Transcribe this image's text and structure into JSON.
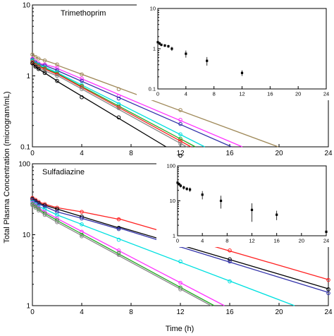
{
  "figure": {
    "ylabel": "Total Plasma Concentration (microgram/mL)",
    "xlabel": "Time (h)"
  },
  "chart_data": [
    {
      "id": "trimethoprim",
      "type": "line",
      "title": "Trimethoprim",
      "yscale": "log",
      "xlim": [
        0,
        24
      ],
      "ylim": [
        0.1,
        10
      ],
      "xticks": [
        "0",
        "4",
        "8",
        "12",
        "16",
        "20",
        "24"
      ],
      "yticks": [
        "0.1",
        "1",
        "10"
      ],
      "grid": false,
      "series": [
        {
          "color": "#a08a5a",
          "x": [
            0,
            0.25,
            0.5,
            1,
            2,
            4,
            7,
            12
          ],
          "y": [
            2.0,
            1.85,
            1.75,
            1.65,
            1.45,
            1.05,
            0.65,
            0.33
          ]
        },
        {
          "color": "#ff33ff",
          "x": [
            0,
            0.25,
            0.5,
            1,
            2,
            4,
            7,
            12
          ],
          "y": [
            1.75,
            1.6,
            1.5,
            1.45,
            1.3,
            0.92,
            0.52,
            0.24
          ]
        },
        {
          "color": "#3333aa",
          "x": [
            0,
            0.25,
            0.5,
            1,
            2,
            4,
            7,
            12
          ],
          "y": [
            1.7,
            1.55,
            1.45,
            1.4,
            1.2,
            0.85,
            0.48,
            0.21
          ]
        },
        {
          "color": "#00e0e0",
          "x": [
            0,
            0.25,
            0.5,
            1,
            2,
            4,
            7,
            12
          ],
          "y": [
            1.65,
            1.5,
            1.42,
            1.33,
            1.12,
            0.75,
            0.4,
            0.15
          ]
        },
        {
          "color": "#22aa22",
          "x": [
            0,
            0.25,
            0.5,
            1,
            2,
            4,
            7,
            12
          ],
          "y": [
            1.6,
            1.45,
            1.38,
            1.28,
            1.08,
            0.72,
            0.37,
            0.13
          ]
        },
        {
          "color": "#ff2222",
          "x": [
            0,
            0.25,
            0.5,
            1,
            2,
            4,
            7,
            12
          ],
          "y": [
            1.55,
            1.42,
            1.35,
            1.25,
            1.05,
            0.7,
            0.36,
            0.12
          ]
        },
        {
          "color": "#888888",
          "x": [
            0,
            0.25,
            0.5,
            1,
            2,
            4,
            7,
            12
          ],
          "y": [
            1.5,
            1.38,
            1.3,
            1.18,
            1.0,
            0.65,
            0.35,
            0.11
          ]
        },
        {
          "color": "#000000",
          "x": [
            0,
            0.25,
            0.5,
            1,
            2,
            4,
            7,
            12
          ],
          "y": [
            1.5,
            1.35,
            1.25,
            1.1,
            0.85,
            0.5,
            0.26,
            0.075
          ]
        }
      ],
      "inset": {
        "type": "scatter",
        "yscale": "log",
        "xlim": [
          0,
          24
        ],
        "ylim": [
          0.1,
          10
        ],
        "xticks": [
          "0",
          "4",
          "8",
          "12",
          "16",
          "20",
          "24"
        ],
        "yticks": [
          "0.1",
          "1",
          "10"
        ],
        "x": [
          0,
          0.25,
          0.5,
          1,
          1.5,
          2,
          4,
          7,
          12
        ],
        "y": [
          1.45,
          1.35,
          1.25,
          1.2,
          1.15,
          1.0,
          0.75,
          0.5,
          0.25
        ],
        "err": [
          0.18,
          0.12,
          0.1,
          0.1,
          0.1,
          0.12,
          0.15,
          0.12,
          0.04
        ]
      }
    },
    {
      "id": "sulfadiazine",
      "type": "line",
      "title": "Sulfadiazine",
      "yscale": "log",
      "xlim": [
        0,
        24
      ],
      "ylim": [
        1,
        100
      ],
      "xticks": [
        "0",
        "4",
        "8",
        "12",
        "16",
        "20",
        "24"
      ],
      "yticks": [
        "1",
        "10",
        "100"
      ],
      "grid": false,
      "series": [
        {
          "color": "#ff2222",
          "x": [
            0,
            0.25,
            0.5,
            1,
            2,
            4,
            7,
            12,
            16,
            24
          ],
          "y": [
            33,
            31,
            29,
            27,
            24,
            21,
            16.5,
            9.5,
            6.0,
            2.3
          ]
        },
        {
          "color": "#000000",
          "x": [
            0,
            0.25,
            0.5,
            1,
            2,
            4,
            7,
            12,
            16,
            24
          ],
          "y": [
            32,
            30,
            28,
            26,
            23,
            18,
            12.5,
            7.5,
            4.5,
            1.7
          ]
        },
        {
          "color": "#3333aa",
          "x": [
            0,
            0.25,
            0.5,
            1,
            2,
            4,
            7,
            12,
            16,
            24
          ],
          "y": [
            31,
            29,
            27,
            25,
            21,
            17,
            12,
            7,
            4.2,
            1.5
          ]
        },
        {
          "color": "#00e0e0",
          "x": [
            0,
            0.25,
            0.5,
            1,
            2,
            4,
            7,
            12,
            16
          ],
          "y": [
            29,
            27,
            25,
            23,
            19,
            14,
            8.5,
            4.2,
            2.2
          ]
        },
        {
          "color": "#ff33ff",
          "x": [
            0,
            0.25,
            0.5,
            1,
            2,
            4,
            7,
            12
          ],
          "y": [
            28,
            26,
            24,
            21,
            17,
            11,
            6.0,
            2.1
          ]
        },
        {
          "color": "#22aa22",
          "x": [
            0,
            0.25,
            0.5,
            1,
            2,
            4,
            7,
            12
          ],
          "y": [
            27,
            25,
            23,
            20,
            16,
            10,
            5.5,
            1.8
          ]
        },
        {
          "color": "#888888",
          "x": [
            0,
            0.25,
            0.5,
            1,
            2,
            4,
            7,
            12
          ],
          "y": [
            26,
            24,
            22,
            19,
            15,
            9.5,
            5.2,
            1.7
          ]
        }
      ],
      "inset": {
        "type": "scatter",
        "yscale": "log",
        "xlim": [
          0,
          24
        ],
        "ylim": [
          1,
          100
        ],
        "xticks": [
          "0",
          "4",
          "8",
          "12",
          "16",
          "20",
          "24"
        ],
        "yticks": [
          "1",
          "10",
          "100"
        ],
        "x": [
          0,
          0.25,
          0.5,
          1,
          1.5,
          2,
          4,
          7,
          12,
          16,
          24
        ],
        "y": [
          33,
          30,
          27,
          24,
          22,
          21,
          15,
          10,
          5.5,
          4.0,
          1.3
        ],
        "err": [
          4,
          3,
          3,
          3,
          2.5,
          3,
          4,
          4,
          3,
          1.2,
          0.2
        ]
      }
    }
  ]
}
